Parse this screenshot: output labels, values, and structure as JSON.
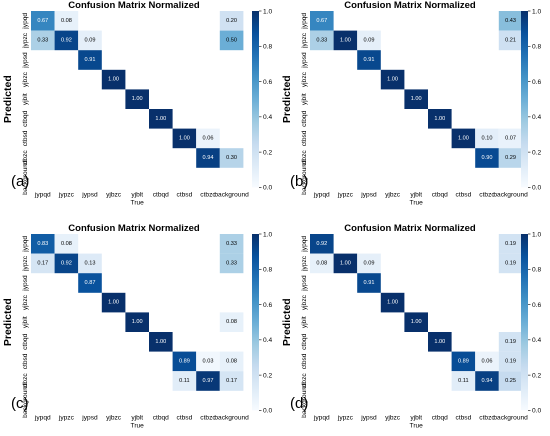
{
  "chart_data": [
    {
      "type": "heatmap",
      "title": "Confusion Matrix Normalized",
      "panel_label": "(a)",
      "xlabel": "True",
      "ylabel": "Predicted",
      "x_categories": [
        "jypqd",
        "jypzc",
        "jypsd",
        "yjbzc",
        "yjblt",
        "ctbqd",
        "ctbsd",
        "ctbzc",
        "background"
      ],
      "y_categories": [
        "jypqd",
        "jypzc",
        "jypsd",
        "yjbzc",
        "yjblt",
        "ctbqd",
        "ctbsd",
        "ctbzc",
        "background"
      ],
      "cells": [
        [
          0,
          0,
          0.67
        ],
        [
          0,
          1,
          0.08
        ],
        [
          0,
          8,
          0.2
        ],
        [
          1,
          0,
          0.33
        ],
        [
          1,
          1,
          0.92
        ],
        [
          1,
          2,
          0.09
        ],
        [
          1,
          8,
          0.5
        ],
        [
          2,
          2,
          0.91
        ],
        [
          3,
          3,
          1.0
        ],
        [
          4,
          4,
          1.0
        ],
        [
          5,
          5,
          1.0
        ],
        [
          6,
          6,
          1.0
        ],
        [
          6,
          7,
          0.06
        ],
        [
          7,
          7,
          0.94
        ],
        [
          7,
          8,
          0.3
        ]
      ],
      "colorbar_range": [
        0,
        1
      ],
      "colorbar_ticks": [
        "0.0",
        "0.2",
        "0.4",
        "0.6",
        "0.8",
        "1.0"
      ]
    },
    {
      "type": "heatmap",
      "title": "Confusion Matrix Normalized",
      "panel_label": "(b)",
      "xlabel": "True",
      "ylabel": "Predicted",
      "x_categories": [
        "jypqd",
        "jypzc",
        "jypsd",
        "yjbzc",
        "yjblt",
        "ctbqd",
        "ctbsd",
        "ctbzc",
        "background"
      ],
      "y_categories": [
        "jypqd",
        "jypzc",
        "jypsd",
        "yjbzc",
        "yjblt",
        "ctbqd",
        "ctbsd",
        "ctbzc",
        "background"
      ],
      "cells": [
        [
          0,
          0,
          0.67
        ],
        [
          0,
          8,
          0.43
        ],
        [
          1,
          0,
          0.33
        ],
        [
          1,
          1,
          1.0
        ],
        [
          1,
          2,
          0.09
        ],
        [
          1,
          8,
          0.21
        ],
        [
          2,
          2,
          0.91
        ],
        [
          3,
          3,
          1.0
        ],
        [
          4,
          4,
          1.0
        ],
        [
          5,
          5,
          1.0
        ],
        [
          6,
          6,
          1.0
        ],
        [
          6,
          7,
          0.1
        ],
        [
          6,
          8,
          0.07
        ],
        [
          7,
          7,
          0.9
        ],
        [
          7,
          8,
          0.29
        ]
      ],
      "colorbar_range": [
        0,
        1
      ],
      "colorbar_ticks": [
        "0.0",
        "0.2",
        "0.4",
        "0.6",
        "0.8",
        "1.0"
      ]
    },
    {
      "type": "heatmap",
      "title": "Confusion Matrix Normalized",
      "panel_label": "(c)",
      "xlabel": "True",
      "ylabel": "Predicted",
      "x_categories": [
        "jypqd",
        "jypzc",
        "jypsd",
        "yjbzc",
        "yjblt",
        "ctbqd",
        "ctbsd",
        "ctbzc",
        "background"
      ],
      "y_categories": [
        "jypqd",
        "jypzc",
        "jypsd",
        "yjbzc",
        "yjblt",
        "ctbqd",
        "ctbsd",
        "ctbzc",
        "background"
      ],
      "cells": [
        [
          0,
          0,
          0.83
        ],
        [
          0,
          1,
          0.08
        ],
        [
          0,
          8,
          0.33
        ],
        [
          1,
          0,
          0.17
        ],
        [
          1,
          1,
          0.92
        ],
        [
          1,
          2,
          0.13
        ],
        [
          1,
          8,
          0.33
        ],
        [
          2,
          2,
          0.87
        ],
        [
          3,
          3,
          1.0
        ],
        [
          4,
          4,
          1.0
        ],
        [
          4,
          8,
          0.08
        ],
        [
          5,
          5,
          1.0
        ],
        [
          6,
          6,
          0.89
        ],
        [
          6,
          7,
          0.03
        ],
        [
          6,
          8,
          0.08
        ],
        [
          7,
          6,
          0.11
        ],
        [
          7,
          7,
          0.97
        ],
        [
          7,
          8,
          0.17
        ]
      ],
      "colorbar_range": [
        0,
        1
      ],
      "colorbar_ticks": [
        "0.0",
        "0.2",
        "0.4",
        "0.6",
        "0.8",
        "1.0"
      ]
    },
    {
      "type": "heatmap",
      "title": "Confusion Matrix Normalized",
      "panel_label": "(d)",
      "xlabel": "True",
      "ylabel": "Predicted",
      "x_categories": [
        "jypqd",
        "jypzc",
        "jypsd",
        "yjbzc",
        "yjblt",
        "ctbqd",
        "ctbsd",
        "ctbzc",
        "background"
      ],
      "y_categories": [
        "jypqd",
        "jypzc",
        "jypsd",
        "yjbzc",
        "yjblt",
        "ctbqd",
        "ctbsd",
        "ctbzc",
        "background"
      ],
      "cells": [
        [
          0,
          0,
          0.92
        ],
        [
          0,
          8,
          0.19
        ],
        [
          1,
          0,
          0.08
        ],
        [
          1,
          1,
          1.0
        ],
        [
          1,
          2,
          0.09
        ],
        [
          1,
          8,
          0.19
        ],
        [
          2,
          2,
          0.91
        ],
        [
          3,
          3,
          1.0
        ],
        [
          4,
          4,
          1.0
        ],
        [
          5,
          5,
          1.0
        ],
        [
          5,
          8,
          0.19
        ],
        [
          6,
          6,
          0.89
        ],
        [
          6,
          7,
          0.06
        ],
        [
          6,
          8,
          0.19
        ],
        [
          7,
          6,
          0.11
        ],
        [
          7,
          7,
          0.94
        ],
        [
          7,
          8,
          0.25
        ]
      ],
      "colorbar_range": [
        0,
        1
      ],
      "colorbar_ticks": [
        "0.0",
        "0.2",
        "0.4",
        "0.6",
        "0.8",
        "1.0"
      ]
    }
  ]
}
